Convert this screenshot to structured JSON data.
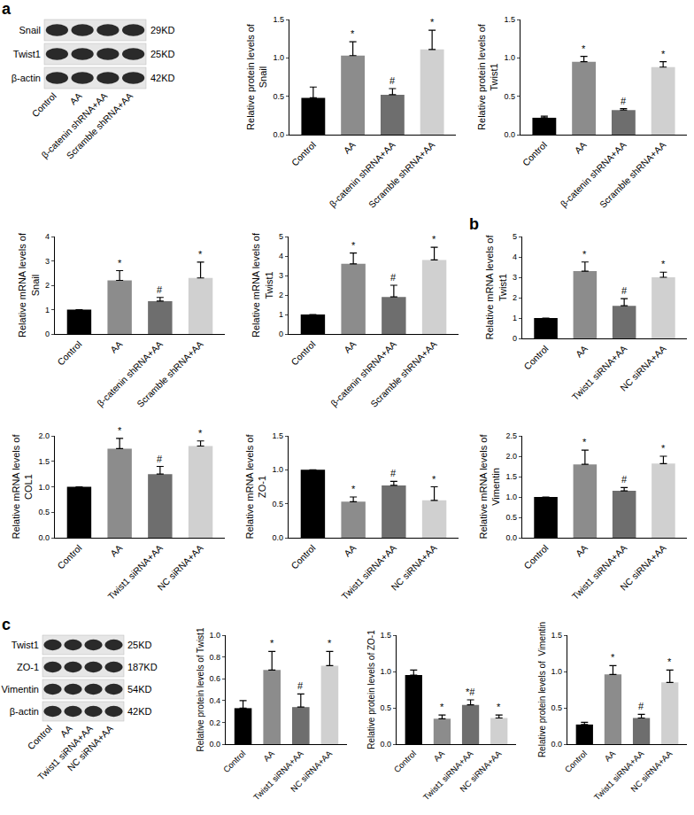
{
  "chart_data": [
    {
      "type": "bar",
      "ylabel": "Relative protein levels of\nSnail",
      "categories": [
        "Control",
        "AA",
        "β-catenin shRNA+AA",
        "Scramble shRNA+AA"
      ],
      "values": [
        0.48,
        1.03,
        0.52,
        1.11
      ],
      "errors": [
        0.14,
        0.18,
        0.08,
        0.25
      ],
      "significance": [
        null,
        "*",
        "#",
        "*"
      ],
      "colors": [
        "#000000",
        "#8c8c8c",
        "#6e6e6e",
        "#d0d0d0"
      ],
      "ylim": [
        0,
        1.5
      ],
      "yticks": [
        {
          "value": 0,
          "label": "0.0"
        },
        0.5,
        {
          "value": 1,
          "label": "1.0"
        },
        1.5
      ]
    },
    {
      "type": "bar",
      "ylabel": "Relative protein levels of\nTwist1",
      "categories": [
        "Control",
        "AA",
        "β-catenin shRNA+AA",
        "Scramble shRNA+AA"
      ],
      "values": [
        0.22,
        0.95,
        0.32,
        0.88
      ],
      "errors": [
        0.02,
        0.07,
        0.02,
        0.07
      ],
      "significance": [
        null,
        "*",
        "#",
        "*"
      ],
      "colors": [
        "#000000",
        "#8c8c8c",
        "#6e6e6e",
        "#d0d0d0"
      ],
      "ylim": [
        0,
        1.5
      ],
      "yticks": [
        {
          "value": 0,
          "label": "0.0"
        },
        0.5,
        {
          "value": 1,
          "label": "1.0"
        },
        1.5
      ]
    },
    {
      "type": "bar",
      "ylabel": "Relative mRNA levels of\nSnail",
      "categories": [
        "Control",
        "AA",
        "β-catenin shRNA+AA",
        "Scramble shRNA+AA"
      ],
      "values": [
        1,
        2.2,
        1.35,
        2.3
      ],
      "errors": [
        0,
        0.4,
        0.15,
        0.65
      ],
      "significance": [
        null,
        "*",
        "#",
        "*"
      ],
      "colors": [
        "#000000",
        "#8c8c8c",
        "#6e6e6e",
        "#d0d0d0"
      ],
      "ylim": [
        0,
        4
      ],
      "yticks": [
        0,
        1,
        2,
        3,
        4
      ]
    },
    {
      "type": "bar",
      "ylabel": "Relative mRNA levels of\nTwist1",
      "categories": [
        "Control",
        "AA",
        "β-catenin shRNA+AA",
        "Scramble shRNA+AA"
      ],
      "values": [
        1,
        3.6,
        1.9,
        3.8
      ],
      "errors": [
        0,
        0.55,
        0.6,
        0.65
      ],
      "significance": [
        null,
        "*",
        "#",
        "*"
      ],
      "colors": [
        "#000000",
        "#8c8c8c",
        "#6e6e6e",
        "#d0d0d0"
      ],
      "ylim": [
        0,
        5
      ],
      "yticks": [
        0,
        1,
        2,
        3,
        4,
        5
      ]
    },
    {
      "type": "bar",
      "panel": "b",
      "ylabel": "Relative mRNA levels of\nTwist1",
      "categories": [
        "Control",
        "AA",
        "Twist1 siRNA+AA",
        "NC siRNA+AA"
      ],
      "values": [
        1,
        3.3,
        1.6,
        3.0
      ],
      "errors": [
        0,
        0.45,
        0.35,
        0.25
      ],
      "significance": [
        null,
        "*",
        "#",
        "*"
      ],
      "colors": [
        "#000000",
        "#8c8c8c",
        "#6e6e6e",
        "#d0d0d0"
      ],
      "ylim": [
        0,
        5
      ],
      "yticks": [
        0,
        1,
        2,
        3,
        4,
        5
      ]
    },
    {
      "type": "bar",
      "ylabel": "Relative mRNA levels of\nCOL1",
      "categories": [
        "Control",
        "AA",
        "Twist1 siRNA+AA",
        "NC siRNA+AA"
      ],
      "values": [
        1,
        1.75,
        1.25,
        1.8
      ],
      "errors": [
        0,
        0.2,
        0.15,
        0.1
      ],
      "significance": [
        null,
        "*",
        "#",
        "*"
      ],
      "colors": [
        "#000000",
        "#8c8c8c",
        "#6e6e6e",
        "#d0d0d0"
      ],
      "ylim": [
        0,
        2
      ],
      "yticks": [
        {
          "value": 0,
          "label": "0.0"
        },
        0.5,
        {
          "value": 1,
          "label": "1.0"
        },
        1.5,
        {
          "value": 2,
          "label": "2.0"
        }
      ]
    },
    {
      "type": "bar",
      "ylabel": "Relative mRNA levels of\nZO-1",
      "categories": [
        "Control",
        "AA",
        "Twist1 siRNA+AA",
        "NC siRNA+AA"
      ],
      "values": [
        1.0,
        0.53,
        0.77,
        0.55
      ],
      "errors": [
        0,
        0.07,
        0.06,
        0.2
      ],
      "significance": [
        null,
        "*",
        "#",
        "*"
      ],
      "colors": [
        "#000000",
        "#8c8c8c",
        "#6e6e6e",
        "#d0d0d0"
      ],
      "ylim": [
        0,
        1.5
      ],
      "yticks": [
        {
          "value": 0,
          "label": "0.0"
        },
        0.5,
        {
          "value": 1,
          "label": "1.0"
        },
        1.5
      ]
    },
    {
      "type": "bar",
      "ylabel": "Relative mRNA levels of\nVimentin",
      "categories": [
        "Control",
        "AA",
        "Twist1 siRNA+AA",
        "NC siRNA+AA"
      ],
      "values": [
        1,
        1.8,
        1.15,
        1.82
      ],
      "errors": [
        0,
        0.35,
        0.08,
        0.18
      ],
      "significance": [
        null,
        "*",
        "#",
        "*"
      ],
      "colors": [
        "#000000",
        "#8c8c8c",
        "#6e6e6e",
        "#d0d0d0"
      ],
      "ylim": [
        0,
        2.5
      ],
      "yticks": [
        {
          "value": 0,
          "label": "0.0"
        },
        0.5,
        {
          "value": 1,
          "label": "1.0"
        },
        1.5,
        {
          "value": 2,
          "label": "2.0"
        },
        2.5
      ]
    },
    {
      "type": "bar",
      "ylabel": "Relative protein levels of Twist1",
      "categories": [
        "Control",
        "AA",
        "Twist1 siRNA+AA",
        "NC siRNA+AA"
      ],
      "values": [
        0.33,
        0.68,
        0.34,
        0.72
      ],
      "errors": [
        0.07,
        0.17,
        0.12,
        0.13
      ],
      "significance": [
        null,
        "*",
        "#",
        "*"
      ],
      "colors": [
        "#000000",
        "#8c8c8c",
        "#6e6e6e",
        "#d0d0d0"
      ],
      "ylim": [
        0,
        1
      ],
      "yticks": [
        {
          "value": 0,
          "label": "0.0"
        },
        0.2,
        0.4,
        0.6,
        0.8,
        {
          "value": 1,
          "label": "1.0"
        }
      ]
    },
    {
      "type": "bar",
      "ylabel": "Relative protein levels of ZO-1",
      "categories": [
        "Control",
        "AA",
        "Twist1 siRNA+AA",
        "NC siRNA+AA"
      ],
      "values": [
        0.95,
        0.35,
        0.54,
        0.36
      ],
      "errors": [
        0.07,
        0.05,
        0.07,
        0.04
      ],
      "significance": [
        null,
        "*",
        "*#",
        "*"
      ],
      "colors": [
        "#000000",
        "#8c8c8c",
        "#6e6e6e",
        "#d0d0d0"
      ],
      "ylim": [
        0,
        1.5
      ],
      "yticks": [
        {
          "value": 0,
          "label": "0.0"
        },
        0.5,
        {
          "value": 1,
          "label": "1.0"
        },
        1.5
      ]
    },
    {
      "type": "bar",
      "ylabel": "Relative protein levels of  Vimentin",
      "categories": [
        "Control",
        "AA",
        "Twist1 siRNA+AA",
        "NC siRNA+AA"
      ],
      "values": [
        0.27,
        0.96,
        0.36,
        0.85
      ],
      "errors": [
        0.03,
        0.12,
        0.05,
        0.17
      ],
      "significance": [
        null,
        "*",
        "#",
        "*"
      ],
      "colors": [
        "#000000",
        "#8c8c8c",
        "#6e6e6e",
        "#d0d0d0"
      ],
      "ylim": [
        0,
        1.5
      ],
      "yticks": [
        {
          "value": 0,
          "label": "0.0"
        },
        0.5,
        {
          "value": 1,
          "label": "1.0"
        },
        1.5
      ]
    }
  ],
  "blots": [
    {
      "panel": "a",
      "lanes": [
        "Control",
        "AA",
        "β-catenin shRNA+AA",
        "Scramble shRNA+AA"
      ],
      "bands": [
        {
          "protein": "Snail",
          "size": "29KD"
        },
        {
          "protein": "Twist1",
          "size": "25KD"
        },
        {
          "protein": "β-actin",
          "size": "42KD"
        }
      ]
    },
    {
      "panel": "c",
      "lanes": [
        "Control",
        "AA",
        "Twist1 siRNA+AA",
        "NC siRNA+AA"
      ],
      "bands": [
        {
          "protein": "Twist1",
          "size": "25KD"
        },
        {
          "protein": "ZO-1",
          "size": "187KD"
        },
        {
          "protein": "Vimentin",
          "size": "54KD"
        },
        {
          "protein": "β-actin",
          "size": "42KD"
        }
      ]
    }
  ]
}
